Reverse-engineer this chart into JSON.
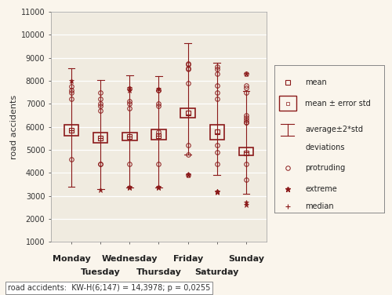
{
  "days": [
    "Monday",
    "Tuesday",
    "Wednesday",
    "Thursday",
    "Friday",
    "Saturday",
    "Sunday"
  ],
  "x_positions": [
    1,
    2,
    3,
    4,
    5,
    6,
    7
  ],
  "mean": [
    5850,
    5520,
    5580,
    5600,
    6600,
    5780,
    4880
  ],
  "box_upper": [
    6100,
    5750,
    5750,
    5900,
    6800,
    6100,
    5100
  ],
  "box_lower": [
    5600,
    5300,
    5400,
    5450,
    6400,
    5450,
    4750
  ],
  "whisk_upper": [
    8550,
    8050,
    8250,
    8200,
    9650,
    8800,
    7550
  ],
  "whisk_lower": [
    3400,
    3300,
    3350,
    3350,
    4800,
    3900,
    3100
  ],
  "median": [
    5850,
    5500,
    5580,
    5600,
    6550,
    5700,
    4900
  ],
  "protruding": [
    [
      4600,
      7200,
      7500,
      7600,
      7750
    ],
    [
      4400,
      4400,
      6700,
      6900,
      7000,
      7200,
      7500
    ],
    [
      4400,
      6800,
      7000,
      7100,
      7650
    ],
    [
      4400,
      5800,
      6900,
      7000,
      7600,
      7600
    ],
    [
      3900,
      4800,
      5200,
      7900,
      8500,
      8550,
      8700,
      8750
    ],
    [
      4400,
      4900,
      5200,
      7200,
      7500,
      7800,
      8300,
      8500,
      8600
    ],
    [
      3700,
      4400,
      6200,
      6200,
      6300,
      6400,
      6500,
      7500,
      7700,
      7800,
      8300
    ]
  ],
  "extreme": [
    [
      8000
    ],
    [
      3250
    ],
    [
      3350,
      3350,
      3400,
      7600,
      7700
    ],
    [
      3350,
      3350,
      3400,
      7650
    ],
    [
      3900,
      3950
    ],
    [
      3150,
      3200,
      3200,
      3200
    ],
    [
      2600,
      2700,
      8300
    ]
  ],
  "color": "#8B1A1A",
  "bg_color": "#FAF5EC",
  "plot_bg": "#F0EBE0",
  "ylim": [
    1000,
    11000
  ],
  "yticks": [
    1000,
    2000,
    3000,
    4000,
    5000,
    6000,
    7000,
    8000,
    9000,
    10000,
    11000
  ],
  "ylabel": "road accidents",
  "footnote": "road accidents:  KW-H(6;147) = 14,3978; p = 0,0255",
  "box_width": 0.5
}
